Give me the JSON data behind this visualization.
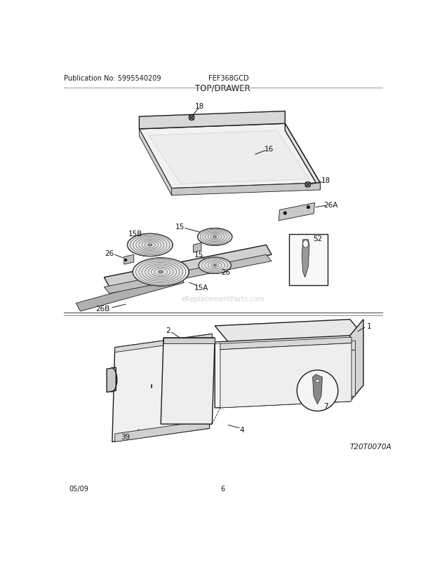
{
  "title": "TOP/DRAWER",
  "pub_no": "Publication No: 5995540209",
  "model": "FEF368GCD",
  "date": "05/09",
  "page": "6",
  "diagram_id": "T20T0070A",
  "bg_color": "#ffffff",
  "line_color": "#1a1a1a",
  "watermark": "eReplacementParts.com"
}
